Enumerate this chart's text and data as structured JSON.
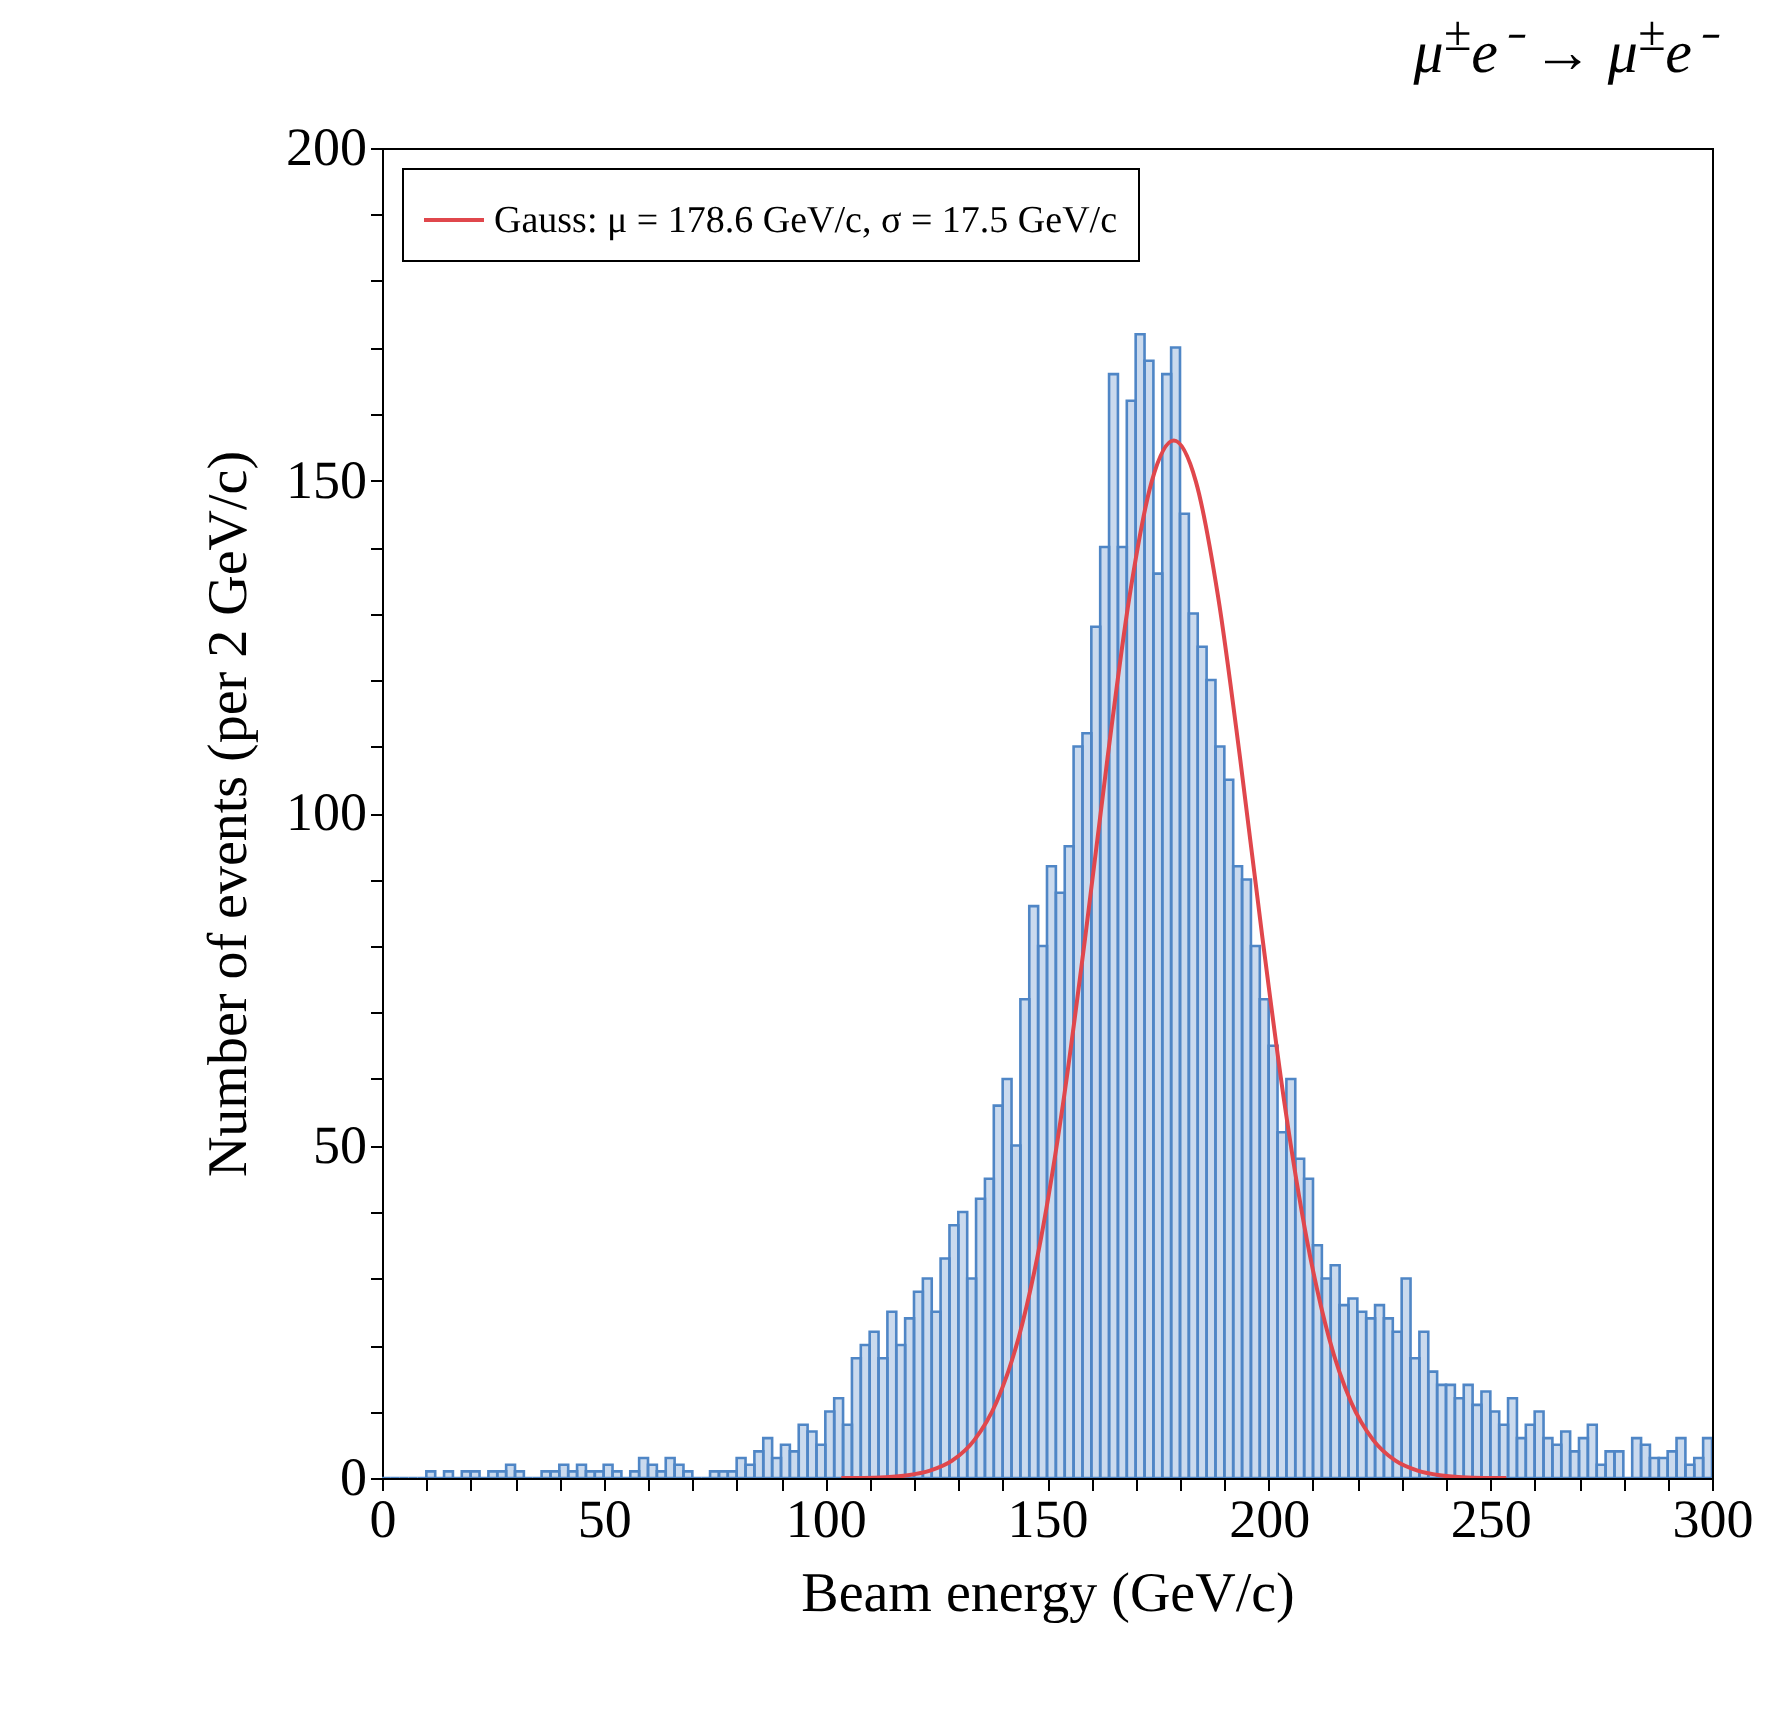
{
  "chart_data": {
    "type": "histogram",
    "title": "μ$^{±}$e⁻ → μ$^{±}$e⁻",
    "xlabel": "Beam energy (GeV/c)",
    "ylabel": "Number of events (per 2 GeV/c)",
    "bins": [
      0,
      2,
      4,
      6,
      8,
      10,
      12,
      14,
      16,
      18,
      20,
      22,
      24,
      26,
      28,
      30,
      32,
      34,
      36,
      38,
      40,
      42,
      44,
      46,
      48,
      50,
      52,
      54,
      56,
      58,
      60,
      62,
      64,
      66,
      68,
      70,
      72,
      74,
      76,
      78,
      80,
      82,
      84,
      86,
      88,
      90,
      92,
      94,
      96,
      98,
      100,
      102,
      104,
      106,
      108,
      110,
      112,
      114,
      116,
      118,
      120,
      122,
      124,
      126,
      128,
      130,
      132,
      134,
      136,
      138,
      140,
      142,
      144,
      146,
      148,
      150,
      152,
      154,
      156,
      158,
      160,
      162,
      164,
      166,
      168,
      170,
      172,
      174,
      176,
      178,
      180,
      182,
      184,
      186,
      188,
      190,
      192,
      194,
      196,
      198,
      200,
      202,
      204,
      206,
      208,
      210,
      212,
      214,
      216,
      218,
      220,
      222,
      224,
      226,
      228,
      230,
      232,
      234,
      236,
      238,
      240,
      242,
      244,
      246,
      248,
      250,
      252,
      254,
      256,
      258,
      260,
      262,
      264,
      266,
      268,
      270,
      272,
      274,
      276,
      278,
      280,
      282,
      284,
      286,
      288,
      290,
      292,
      294,
      296,
      298,
      300
    ],
    "series": [
      {
        "type": "histogram",
        "color": "#4f86c6",
        "values": [
          0,
          0,
          0,
          0,
          0,
          1,
          0,
          1,
          0,
          1,
          1,
          0,
          1,
          1,
          2,
          1,
          0,
          0,
          1,
          1,
          2,
          1,
          2,
          1,
          1,
          2,
          1,
          0,
          1,
          3,
          2,
          1,
          3,
          2,
          1,
          0,
          0,
          1,
          1,
          1,
          3,
          2,
          4,
          6,
          3,
          5,
          4,
          8,
          7,
          5,
          10,
          12,
          8,
          18,
          20,
          22,
          18,
          25,
          20,
          24,
          28,
          30,
          25,
          33,
          38,
          40,
          30,
          42,
          45,
          56,
          60,
          50,
          72,
          86,
          80,
          92,
          88,
          95,
          110,
          112,
          128,
          140,
          166,
          140,
          162,
          172,
          168,
          136,
          166,
          170,
          145,
          130,
          125,
          120,
          110,
          105,
          92,
          90,
          80,
          72,
          65,
          52,
          60,
          48,
          45,
          35,
          30,
          32,
          26,
          27,
          25,
          24,
          26,
          24,
          22,
          30,
          18,
          22,
          16,
          14,
          14,
          12,
          14,
          11,
          13,
          10,
          8,
          12,
          6,
          8,
          10,
          6,
          5,
          7,
          4,
          6,
          8,
          2,
          4,
          4,
          0,
          6,
          5,
          3,
          3,
          4,
          6,
          2,
          3,
          6
        ]
      },
      {
        "type": "line",
        "name": "Gauss: μ = 178.6 GeV/c, σ = 17.5 GeV/c",
        "color": "#e0474c",
        "x": [
          103.6,
          108.6,
          113.6,
          118.6,
          123.6,
          128.6,
          133.6,
          138.6,
          143.6,
          148.6,
          153.6,
          158.6,
          163.6,
          168.6,
          173.6,
          178.6,
          183.6,
          188.6,
          193.6,
          198.6,
          203.6,
          208.6,
          213.6,
          218.6,
          223.6,
          228.6,
          233.6,
          238.6,
          243.6,
          248.6,
          253.6
        ],
        "values": [
          0,
          0,
          0.1,
          0.4,
          1.1,
          2.6,
          5.7,
          11.4,
          21.1,
          35.9,
          56.2,
          81.2,
          108,
          132.5,
          149.8,
          156,
          149.8,
          132.5,
          108,
          81.2,
          56.2,
          35.9,
          21.1,
          11.4,
          5.7,
          2.6,
          1.1,
          0.4,
          0.1,
          0,
          0
        ]
      }
    ],
    "xlim": [
      0,
      300
    ],
    "xticks": [
      0,
      {
        "value": 10,
        "label": null
      },
      {
        "value": 20,
        "label": null
      },
      {
        "value": 30,
        "label": null
      },
      {
        "value": 40,
        "label": null
      },
      50,
      {
        "value": 60,
        "label": null
      },
      {
        "value": 70,
        "label": null
      },
      {
        "value": 80,
        "label": null
      },
      {
        "value": 90,
        "label": null
      },
      100,
      {
        "value": 110,
        "label": null
      },
      {
        "value": 120,
        "label": null
      },
      {
        "value": 130,
        "label": null
      },
      {
        "value": 140,
        "label": null
      },
      150,
      {
        "value": 160,
        "label": null
      },
      {
        "value": 170,
        "label": null
      },
      {
        "value": 180,
        "label": null
      },
      {
        "value": 190,
        "label": null
      },
      200,
      {
        "value": 210,
        "label": null
      },
      {
        "value": 220,
        "label": null
      },
      {
        "value": 230,
        "label": null
      },
      {
        "value": 240,
        "label": null
      },
      250,
      {
        "value": 260,
        "label": null
      },
      {
        "value": 270,
        "label": null
      },
      {
        "value": 280,
        "label": null
      },
      {
        "value": 290,
        "label": null
      },
      300
    ],
    "ylim": [
      0,
      200
    ],
    "yticks": [
      0,
      {
        "value": 10,
        "label": null
      },
      {
        "value": 20,
        "label": null
      },
      {
        "value": 30,
        "label": null
      },
      {
        "value": 40,
        "label": null
      },
      50,
      {
        "value": 60,
        "label": null
      },
      {
        "value": 70,
        "label": null
      },
      {
        "value": 80,
        "label": null
      },
      {
        "value": 90,
        "label": null
      },
      100,
      {
        "value": 110,
        "label": null
      },
      {
        "value": 120,
        "label": null
      },
      {
        "value": 130,
        "label": null
      },
      {
        "value": 140,
        "label": null
      },
      150,
      {
        "value": 160,
        "label": null
      },
      {
        "value": 170,
        "label": null
      },
      {
        "value": 180,
        "label": null
      },
      {
        "value": 190,
        "label": null
      },
      200
    ],
    "legend": "top left"
  }
}
